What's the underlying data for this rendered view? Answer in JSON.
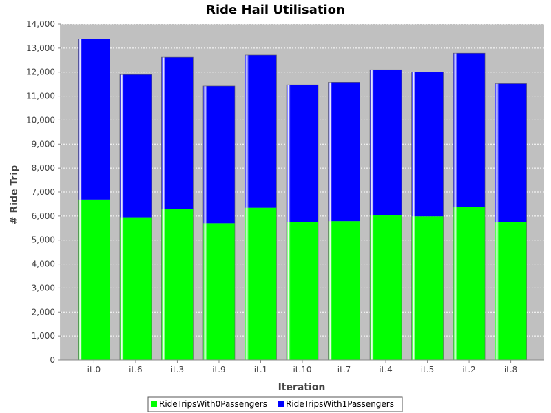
{
  "chart_data": {
    "type": "bar",
    "stacked": true,
    "title": "Ride Hail Utilisation",
    "xlabel": "Iteration",
    "ylabel": "# Ride Trip",
    "ylim": [
      0,
      14000
    ],
    "yticks": [
      0,
      1000,
      2000,
      3000,
      4000,
      5000,
      6000,
      7000,
      8000,
      9000,
      10000,
      11000,
      12000,
      13000,
      14000
    ],
    "ytick_labels": [
      "0",
      "1,000",
      "2,000",
      "3,000",
      "4,000",
      "5,000",
      "6,000",
      "7,000",
      "8,000",
      "9,000",
      "10,000",
      "11,000",
      "12,000",
      "13,000",
      "14,000"
    ],
    "categories": [
      "it.0",
      "it.6",
      "it.3",
      "it.9",
      "it.1",
      "it.10",
      "it.7",
      "it.4",
      "it.5",
      "it.2",
      "it.8"
    ],
    "series": [
      {
        "name": "RideTripsWith0Passengers",
        "color": "#00ff00",
        "values": [
          6690,
          5950,
          6310,
          5700,
          6350,
          5740,
          5790,
          6050,
          5990,
          6390,
          5750
        ]
      },
      {
        "name": "RideTripsWith1Passengers",
        "color": "#0000ff",
        "values": [
          6690,
          5950,
          6310,
          5720,
          6360,
          5730,
          5790,
          6050,
          6010,
          6400,
          5770
        ]
      }
    ],
    "grid": true,
    "plot_background": "#c0c0c0",
    "legend_position": "bottom"
  }
}
